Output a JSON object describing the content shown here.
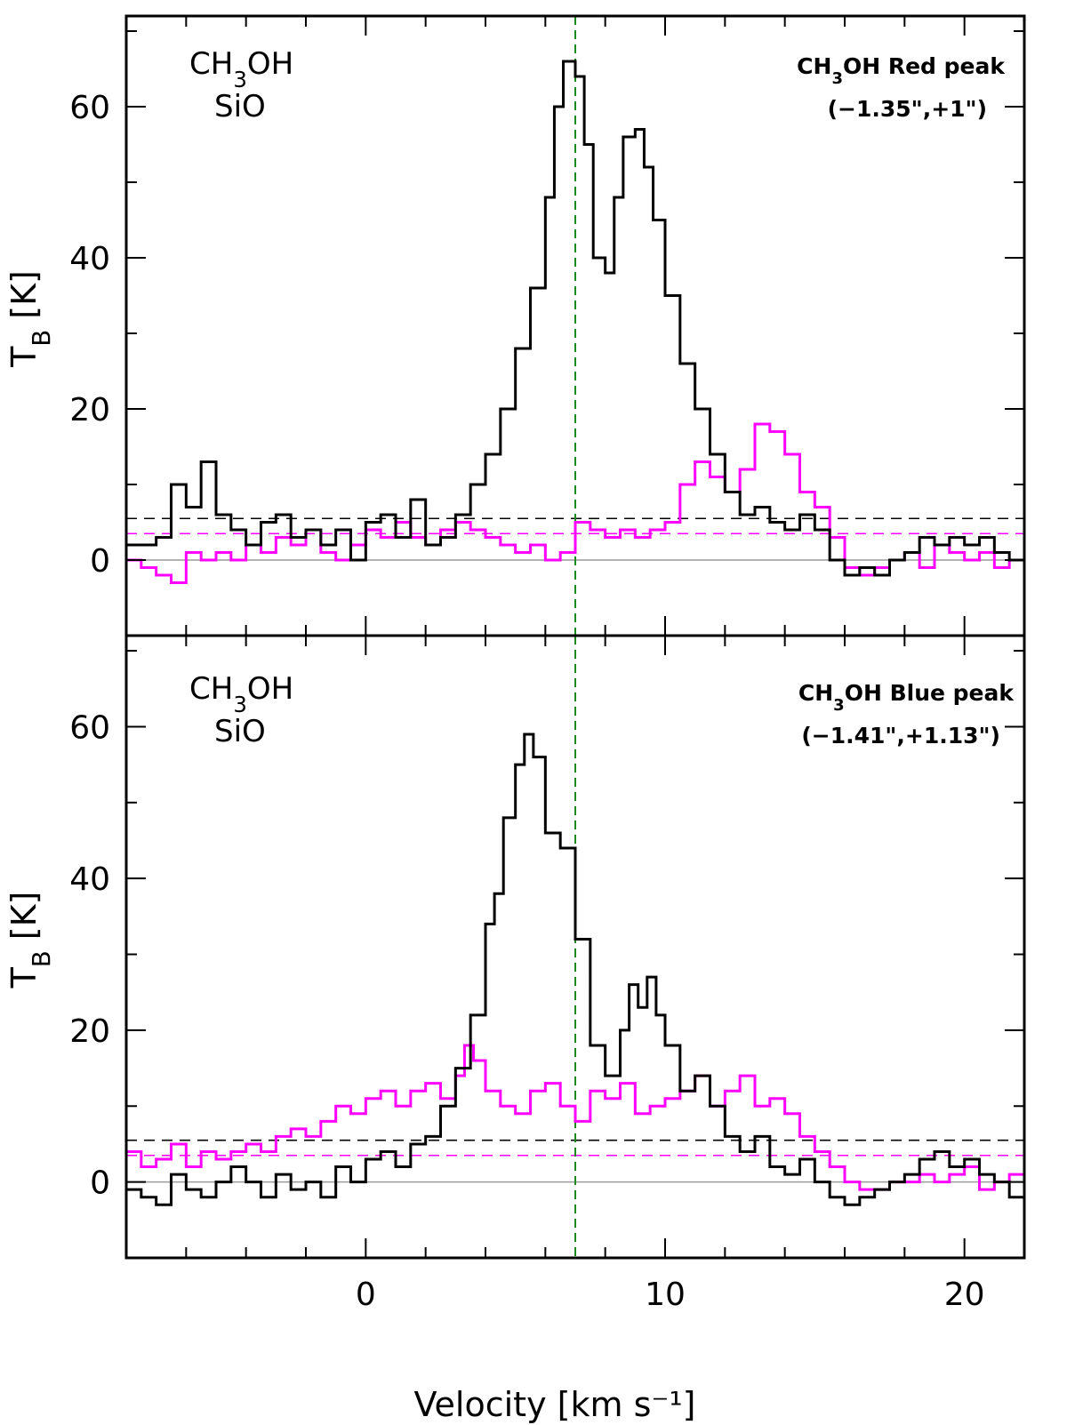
{
  "chart_data": [
    {
      "type": "line",
      "panel": "top",
      "annotation": {
        "line1": "CH3OH Red peak",
        "line2": "(−1.35\",+1\")"
      },
      "legend": [
        {
          "label": "CH3OH",
          "color": "#000000"
        },
        {
          "label": "SiO",
          "color": "#ff00ff"
        }
      ],
      "xlim": [
        -8,
        22
      ],
      "ylim": [
        -10,
        72
      ],
      "x_ticks": [
        0,
        10,
        20
      ],
      "y_ticks": [
        0,
        20,
        40,
        60
      ],
      "ylabel": "T_B [K]",
      "reference_velocity": 7,
      "threshold_lines": [
        {
          "color": "#000000",
          "value": 5.5
        },
        {
          "color": "#ff00ff",
          "value": 3.5
        }
      ],
      "series": [
        {
          "name": "CH3OH",
          "color": "#000000",
          "style": "step",
          "x": [
            -8,
            -7,
            -6.5,
            -6,
            -5.5,
            -5,
            -4.5,
            -4,
            -3.5,
            -3,
            -2.5,
            -2,
            -1.5,
            -1,
            -0.5,
            0,
            0.5,
            1,
            1.5,
            2,
            2.5,
            3,
            3.5,
            4,
            4.5,
            5,
            5.5,
            6,
            6.3,
            6.6,
            7,
            7.3,
            7.6,
            8,
            8.3,
            8.6,
            9,
            9.3,
            9.6,
            10,
            10.5,
            11,
            11.5,
            12,
            12.5,
            13,
            13.5,
            14,
            14.5,
            15,
            15.5,
            16,
            16.5,
            17,
            17.5,
            18,
            18.5,
            19,
            19.5,
            20,
            20.5,
            21,
            21.5,
            22
          ],
          "y": [
            2,
            3,
            10,
            7,
            13,
            6,
            4,
            2,
            5,
            6,
            3,
            4,
            2,
            4,
            0,
            5,
            6,
            3,
            8,
            2,
            3,
            6,
            10,
            14,
            20,
            28,
            36,
            48,
            60,
            66,
            64,
            55,
            40,
            38,
            48,
            56,
            57,
            52,
            45,
            35,
            26,
            20,
            14,
            9,
            6,
            7,
            5,
            4,
            6,
            4,
            0,
            -2,
            -1,
            -2,
            0,
            1,
            3,
            2,
            3,
            2,
            3,
            1,
            0,
            1
          ]
        },
        {
          "name": "SiO",
          "color": "#ff00ff",
          "style": "step",
          "x": [
            -8,
            -7.5,
            -7,
            -6.5,
            -6,
            -5.5,
            -5,
            -4.5,
            -4,
            -3.5,
            -3,
            -2.5,
            -2,
            -1.5,
            -1,
            -0.5,
            0,
            0.5,
            1,
            1.5,
            2,
            2.5,
            3,
            3.5,
            4,
            4.5,
            5,
            5.5,
            6,
            6.5,
            7,
            7.5,
            8,
            8.5,
            9,
            9.5,
            10,
            10.5,
            11,
            11.5,
            12,
            12.5,
            13,
            13.5,
            14,
            14.5,
            15,
            15.5,
            16,
            16.5,
            17,
            17.5,
            18,
            18.5,
            19,
            19.5,
            20,
            20.5,
            21,
            21.5,
            22
          ],
          "y": [
            0,
            -1,
            -2,
            -3,
            1,
            0,
            1,
            0,
            2,
            1,
            3,
            2,
            4,
            1,
            0,
            2,
            4,
            3,
            5,
            3,
            2,
            4,
            5,
            4,
            3,
            2,
            1,
            2,
            0,
            1,
            5,
            4,
            3,
            4,
            3,
            4,
            5,
            10,
            13,
            11,
            9,
            12,
            18,
            17,
            14,
            9,
            7,
            3,
            -1,
            -2,
            -1,
            0,
            1,
            -1,
            2,
            1,
            0,
            1,
            -1,
            0,
            0
          ]
        }
      ]
    },
    {
      "type": "line",
      "panel": "bottom",
      "annotation": {
        "line1": "CH3OH Blue peak",
        "line2": "(−1.41\",+1.13\")"
      },
      "legend": [
        {
          "label": "CH3OH",
          "color": "#000000"
        },
        {
          "label": "SiO",
          "color": "#ff00ff"
        }
      ],
      "xlim": [
        -8,
        22
      ],
      "ylim": [
        -10,
        72
      ],
      "x_ticks": [
        0,
        10,
        20
      ],
      "y_ticks": [
        0,
        20,
        40,
        60
      ],
      "xlabel": "Velocity [km s⁻¹]",
      "ylabel": "T_B [K]",
      "reference_velocity": 7,
      "threshold_lines": [
        {
          "color": "#000000",
          "value": 5.5
        },
        {
          "color": "#ff00ff",
          "value": 3.5
        }
      ],
      "series": [
        {
          "name": "CH3OH",
          "color": "#000000",
          "style": "step",
          "x": [
            -8,
            -7.5,
            -7,
            -6.5,
            -6,
            -5.5,
            -5,
            -4.5,
            -4,
            -3.5,
            -3,
            -2.5,
            -2,
            -1.5,
            -1,
            -0.5,
            0,
            0.5,
            1,
            1.5,
            2,
            2.5,
            3,
            3.5,
            4,
            4.3,
            4.6,
            5,
            5.3,
            5.6,
            6,
            6.5,
            7,
            7.5,
            8,
            8.5,
            8.8,
            9.1,
            9.4,
            9.7,
            10,
            10.5,
            11,
            11.5,
            12,
            12.5,
            13,
            13.5,
            14,
            14.5,
            15,
            15.5,
            16,
            16.5,
            17,
            17.5,
            18,
            18.5,
            19,
            19.5,
            20,
            20.5,
            21,
            21.5,
            22
          ],
          "y": [
            -1,
            -2,
            -3,
            1,
            -1,
            -2,
            0,
            2,
            0,
            -2,
            1,
            -1,
            0,
            -2,
            2,
            0,
            3,
            4,
            2,
            5,
            6,
            10,
            15,
            22,
            34,
            38,
            48,
            55,
            59,
            56,
            46,
            44,
            32,
            18,
            14,
            20,
            26,
            23,
            27,
            22,
            18,
            12,
            14,
            10,
            6,
            4,
            6,
            2,
            1,
            3,
            0,
            -2,
            -3,
            -2,
            -1,
            0,
            1,
            3,
            4,
            2,
            3,
            1,
            0,
            -2,
            -3
          ]
        },
        {
          "name": "SiO",
          "color": "#ff00ff",
          "style": "step",
          "x": [
            -8,
            -7.5,
            -7,
            -6.5,
            -6,
            -5.5,
            -5,
            -4.5,
            -4,
            -3.5,
            -3,
            -2.5,
            -2,
            -1.5,
            -1,
            -0.5,
            0,
            0.5,
            1,
            1.5,
            2,
            2.5,
            3,
            3.3,
            3.6,
            4,
            4.5,
            5,
            5.5,
            6,
            6.5,
            7,
            7.5,
            8,
            8.5,
            9,
            9.5,
            10,
            10.5,
            11,
            11.5,
            12,
            12.5,
            13,
            13.5,
            14,
            14.5,
            15,
            15.5,
            16,
            16.5,
            17,
            17.5,
            18,
            18.5,
            19,
            19.5,
            20,
            20.5,
            21,
            21.5,
            22
          ],
          "y": [
            4,
            2,
            3,
            5,
            2,
            4,
            3,
            4,
            5,
            4,
            6,
            7,
            6,
            8,
            10,
            9,
            11,
            12,
            10,
            12,
            13,
            11,
            14,
            18,
            16,
            12,
            10,
            9,
            12,
            13,
            10,
            8,
            12,
            11,
            13,
            9,
            10,
            11,
            12,
            14,
            10,
            12,
            14,
            10,
            11,
            9,
            6,
            4,
            2,
            0,
            -1,
            -1,
            0,
            0,
            1,
            0,
            1,
            2,
            -1,
            0,
            1,
            0
          ]
        }
      ]
    }
  ]
}
